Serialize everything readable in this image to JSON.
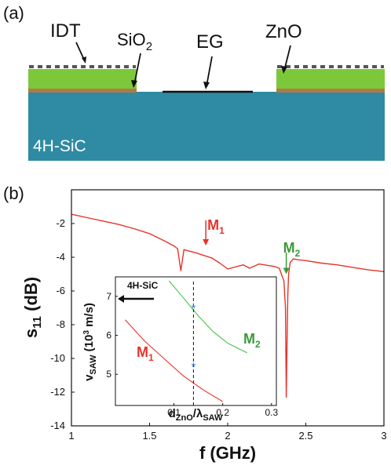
{
  "panel_a": {
    "label": "(a)",
    "labels": {
      "idt": "IDT",
      "sio2_main": "SiO",
      "sio2_sub": "2",
      "eg": "EG",
      "zno": "ZnO",
      "substrate": "4H-SiC"
    },
    "colors": {
      "substrate": "#2f8aa3",
      "zno": "#7cc83a",
      "sio2": "#b07a47",
      "idt": "#555555",
      "eg": "#111111"
    }
  },
  "panel_b": {
    "label": "(b)"
  },
  "chart_data": [
    {
      "type": "line",
      "xlabel": "f (GHz)",
      "ylabel_main": "s",
      "ylabel_sub": "11",
      "ylabel_unit": " (dB)",
      "xlim": [
        1,
        3
      ],
      "ylim": [
        -14,
        0
      ],
      "x_ticks": [
        1,
        1.5,
        2,
        2.5,
        3
      ],
      "y_ticks": [
        -14,
        -12,
        -10,
        -8,
        -6,
        -4,
        -2
      ],
      "series": [
        {
          "color": "#e8332a",
          "x": [
            1,
            1.1,
            1.2,
            1.3,
            1.4,
            1.5,
            1.6,
            1.66,
            1.68,
            1.7,
            1.72,
            1.8,
            1.9,
            1.95,
            2.0,
            2.1,
            2.14,
            2.2,
            2.3,
            2.33,
            2.36,
            2.37,
            2.375,
            2.38,
            2.385,
            2.39,
            2.4,
            2.42,
            2.45,
            2.5,
            2.6,
            2.7,
            2.8,
            2.9,
            3.0
          ],
          "y": [
            -1.45,
            -1.65,
            -1.85,
            -2.05,
            -2.3,
            -2.6,
            -3.05,
            -3.35,
            -3.5,
            -4.8,
            -3.55,
            -3.75,
            -4.05,
            -4.35,
            -4.7,
            -4.45,
            -4.65,
            -4.4,
            -4.55,
            -4.65,
            -5.4,
            -7.0,
            -12.3,
            -9.0,
            -6.2,
            -5.0,
            -4.3,
            -4.1,
            -4.15,
            -4.2,
            -4.35,
            -4.45,
            -4.6,
            -4.75,
            -4.85
          ]
        }
      ],
      "annotations": [
        {
          "main": "M",
          "sub": "1",
          "x": 1.86,
          "color": "#e8332a"
        },
        {
          "main": "M",
          "sub": "2",
          "x": 2.375,
          "color": "#3a9a3a"
        }
      ]
    },
    {
      "type": "line",
      "xlabel_main": "d",
      "xlabel_sub1": "ZnO",
      "xlabel_mid": "/λ",
      "xlabel_sub2": "SAW",
      "ylabel_main": "v",
      "ylabel_sub": "SAW",
      "ylabel_rest": " (10",
      "ylabel_sup": "3",
      "ylabel_unit": " m/s)",
      "xlim": [
        -0.02,
        0.31
      ],
      "ylim": [
        4.2,
        7.5
      ],
      "x_ticks": [
        0.1,
        0.2,
        0.3
      ],
      "y_ticks": [
        5,
        6,
        7
      ],
      "series": [
        {
          "name_main": "M",
          "name_sub": "1",
          "color": "#e8332a",
          "x": [
            0.0,
            0.04,
            0.08,
            0.12,
            0.16,
            0.2
          ],
          "y": [
            6.4,
            5.85,
            5.4,
            4.95,
            4.6,
            4.3
          ]
        },
        {
          "name_main": "M",
          "name_sub": "2",
          "color": "#49c24a",
          "x": [
            0.09,
            0.12,
            0.15,
            0.18,
            0.21,
            0.25
          ],
          "y": [
            7.4,
            6.95,
            6.5,
            6.1,
            5.8,
            5.55
          ]
        }
      ],
      "markers": [
        {
          "x": 0.14,
          "y": 6.7
        },
        {
          "x": 0.14,
          "y": 5.2
        }
      ],
      "dashed_x": 0.14,
      "substrate_label": "4H-SiC",
      "marker_color": "#2f7de0"
    }
  ]
}
